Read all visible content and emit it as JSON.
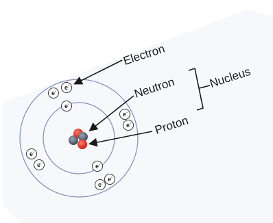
{
  "labels": {
    "electron": "Electron",
    "neutron": "Neutron",
    "proton": "Proton",
    "nucleus": "Nucleus"
  },
  "electron_symbol": "e",
  "electron_charge": "-",
  "colors": {
    "paper": "#f7f8fb",
    "orbit": "#7d8fb8",
    "proton": "#e23a2c",
    "neutron": "#5a6678",
    "arrow": "#1a1a1a"
  }
}
